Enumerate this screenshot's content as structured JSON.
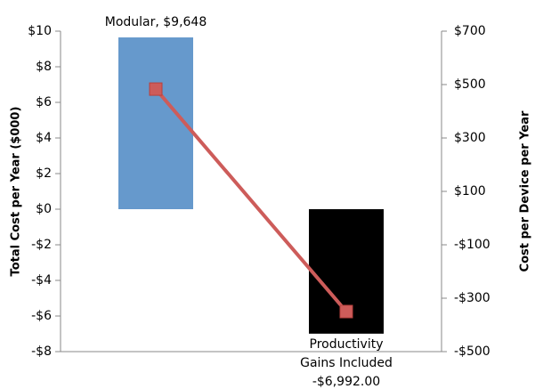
{
  "chart_data": {
    "type": "bar",
    "y_label": "Total Cost per Year ($000)",
    "y2_label": "Cost per Device per Year",
    "categories": [
      null,
      null
    ],
    "series": [
      {
        "type": "bar",
        "colors": [
          "#6699cc",
          "#000000"
        ],
        "values": [
          9.648,
          -6.992
        ],
        "value_labels": [
          "Modular, $9,648",
          "Productivity\nGains Included\n-$6,992.00"
        ]
      },
      {
        "type": "line",
        "axis": "y2",
        "color": "#cd5c5a",
        "values": [
          483,
          -350
        ]
      }
    ],
    "ylim": [
      -8,
      10
    ],
    "yticks": [
      {
        "value": -8,
        "label": "-$8"
      },
      {
        "value": -6,
        "label": "-$6"
      },
      {
        "value": -4,
        "label": "-$4"
      },
      {
        "value": -2,
        "label": "-$2"
      },
      {
        "value": 0,
        "label": "$0"
      },
      {
        "value": 2,
        "label": "$2"
      },
      {
        "value": 4,
        "label": "$4"
      },
      {
        "value": 6,
        "label": "$6"
      },
      {
        "value": 8,
        "label": "$8"
      },
      {
        "value": 10,
        "label": "$10"
      }
    ],
    "y2lim": [
      -500,
      700
    ],
    "y2ticks": [
      {
        "value": -500,
        "label": "-$500"
      },
      {
        "value": -300,
        "label": "-$300"
      },
      {
        "value": -100,
        "label": "-$100"
      },
      {
        "value": 100,
        "label": "$100"
      },
      {
        "value": 300,
        "label": "$300"
      },
      {
        "value": 500,
        "label": "$500"
      },
      {
        "value": 700,
        "label": "$700"
      }
    ],
    "grid": false
  }
}
